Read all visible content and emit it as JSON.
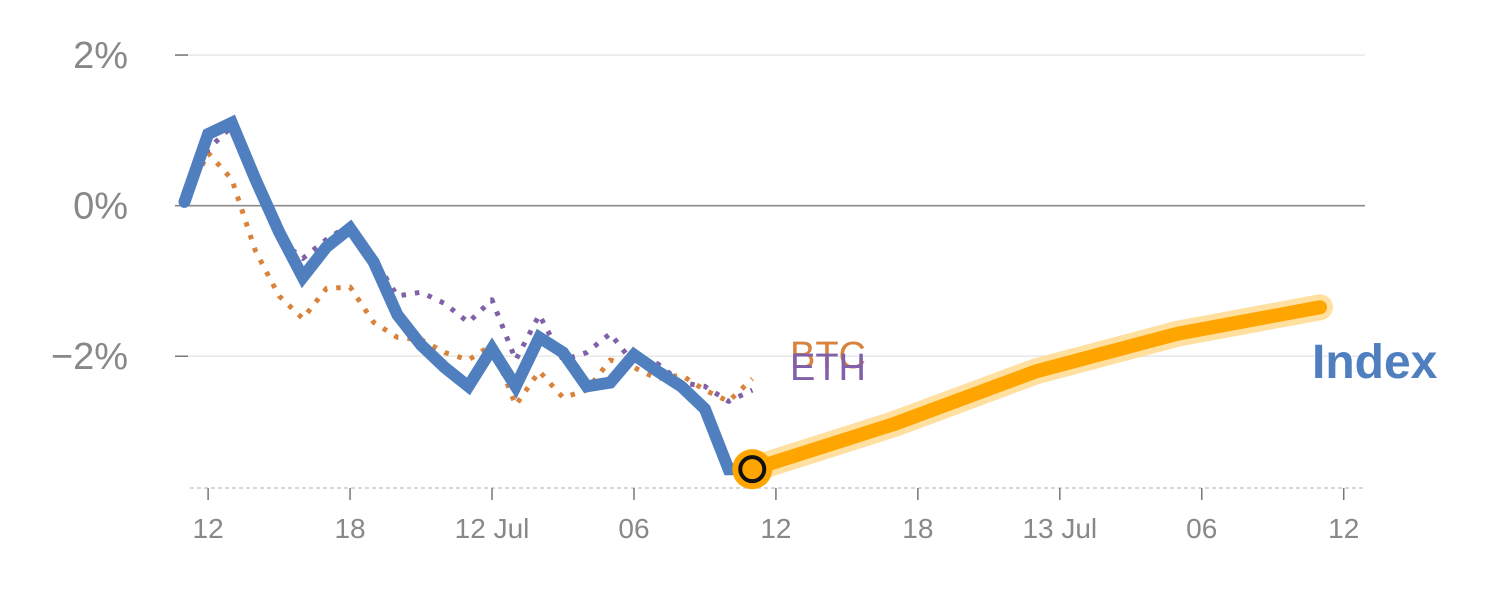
{
  "chart_data": {
    "type": "line",
    "title": "",
    "xlabel": "",
    "ylabel": "",
    "x_unit": "hours",
    "xlim": [
      -1.4,
      48.9
    ],
    "ylim": [
      -3.75,
      2.2
    ],
    "y_ticks": [
      {
        "value": 2,
        "label": "2%",
        "grid": "light"
      },
      {
        "value": 0,
        "label": "0%",
        "grid": "zero"
      },
      {
        "value": -2,
        "label": "−2%",
        "grid": "light"
      }
    ],
    "x_ticks": [
      {
        "value": 0,
        "label": "12"
      },
      {
        "value": 6,
        "label": "18"
      },
      {
        "value": 12,
        "label": "12 Jul"
      },
      {
        "value": 18,
        "label": "06"
      },
      {
        "value": 24,
        "label": "12"
      },
      {
        "value": 30,
        "label": "18"
      },
      {
        "value": 36,
        "label": "13 Jul"
      },
      {
        "value": 42,
        "label": "06"
      },
      {
        "value": 48,
        "label": "12"
      }
    ],
    "series": [
      {
        "name": "BTC",
        "label": "BTC",
        "color": "#d9823b",
        "style": "dotted",
        "x": [
          -1,
          0,
          1,
          2,
          3,
          4,
          5,
          6,
          7,
          8,
          9,
          10,
          11,
          12,
          13,
          14,
          15,
          16,
          17,
          18,
          19,
          20,
          21,
          22,
          23
        ],
        "y": [
          0.05,
          0.7,
          0.35,
          -0.6,
          -1.2,
          -1.5,
          -1.1,
          -1.08,
          -1.55,
          -1.75,
          -1.78,
          -1.95,
          -2.05,
          -1.85,
          -2.65,
          -2.2,
          -2.55,
          -2.45,
          -2.05,
          -2.15,
          -2.3,
          -2.25,
          -2.45,
          -2.6,
          -2.3
        ]
      },
      {
        "name": "ETH",
        "label": "ETH",
        "color": "#8060a8",
        "style": "dotted",
        "x": [
          -1,
          0,
          1,
          2,
          3,
          4,
          5,
          6,
          7,
          8,
          9,
          10,
          11,
          12,
          13,
          14,
          15,
          16,
          17,
          18,
          19,
          20,
          21,
          22,
          23
        ],
        "y": [
          0.05,
          0.75,
          1.05,
          0.25,
          -0.45,
          -0.7,
          -0.45,
          -0.25,
          -0.7,
          -1.2,
          -1.15,
          -1.3,
          -1.55,
          -1.25,
          -2.05,
          -1.45,
          -2.05,
          -1.95,
          -1.7,
          -2.1,
          -2.1,
          -2.35,
          -2.4,
          -2.6,
          -2.45
        ]
      },
      {
        "name": "Index",
        "label": "Index",
        "color": "#4f7fbf",
        "style": "solid",
        "x": [
          -1,
          0,
          1,
          2,
          3,
          4,
          5,
          6,
          7,
          8,
          9,
          10,
          11,
          12,
          13,
          14,
          15,
          16,
          17,
          18,
          19,
          20,
          21,
          22,
          23
        ],
        "y": [
          0.05,
          0.95,
          1.1,
          0.35,
          -0.35,
          -0.95,
          -0.55,
          -0.3,
          -0.75,
          -1.45,
          -1.85,
          -2.15,
          -2.4,
          -1.9,
          -2.4,
          -1.75,
          -1.95,
          -2.4,
          -2.35,
          -1.98,
          -2.2,
          -2.4,
          -2.7,
          -3.5,
          -3.5
        ]
      },
      {
        "name": "Index projection",
        "color": "#ffa500",
        "style": "solid-thick",
        "x": [
          23,
          29,
          35,
          41,
          47
        ],
        "y": [
          -3.5,
          -2.9,
          -2.2,
          -1.7,
          -1.35
        ]
      }
    ],
    "marker": {
      "x": 23,
      "y": -3.5,
      "color": "#ffa500"
    }
  }
}
